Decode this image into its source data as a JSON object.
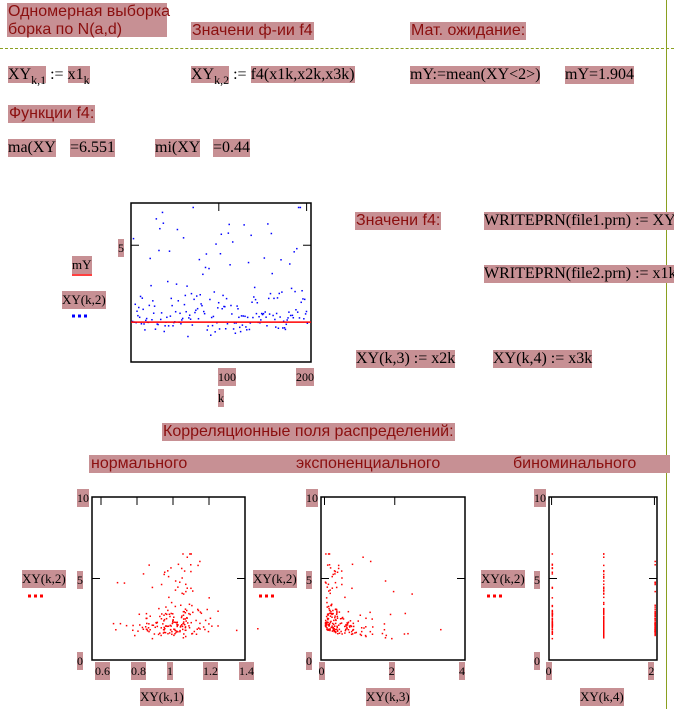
{
  "header": {
    "title_line1": "Одномерная выборка",
    "title_line2": "борка по N(a,d)",
    "func_values_heading": "Значени ф-ии f4",
    "expectation_heading": "Мат. ожидание:"
  },
  "formulas": {
    "xy1_lhs": "XY",
    "xy1_sub": "k,1",
    "xy1_rhs": "x1",
    "xy1_rhs_sub": "k",
    "xy2_lhs": "XY",
    "xy2_sub": "k,2",
    "xy2_rhs": "f4(x1k,x2k,x3k)",
    "mean_def": "mY:=mean(XY<2>)",
    "mean_result": "mY=1.904",
    "functions_heading": "Функции f4:",
    "max_expr": "ma(XY",
    "max_value": "=6.551",
    "min_expr": "mi(XY",
    "min_value": "=0.44",
    "f4_values_label": "Значени f4:",
    "write1": "WRITEPRN(file1.prn) := XY",
    "write2": "WRITEPRN(file2.prn) := x1k",
    "xy3": "XY(k,3) := x2k",
    "xy4": "XY(k,4) := x3k"
  },
  "section": {
    "corr_heading": "Корреляционные поля распределений:",
    "labels": [
      "нормального",
      "экспоненциального",
      "биноминального"
    ]
  },
  "colors": {
    "highlight": "#c79094",
    "heading_text": "#8b0f0f",
    "plot_blue": "#0000ff",
    "plot_red": "#ff0000",
    "divider": "#8aa020"
  },
  "chart_data": [
    {
      "type": "scatter",
      "xlabel": "k",
      "ylabel": "XY(k,2)",
      "legend": [
        "mY",
        "XY(k,2)"
      ],
      "xticks": [
        "100",
        "200"
      ],
      "yticks": [
        "5"
      ],
      "xlim": [
        0,
        205
      ],
      "ylim": [
        0.3,
        6.7
      ],
      "mean_line": 1.904,
      "n_points": 200
    },
    {
      "type": "scatter",
      "xlabel": "XY(k,1)",
      "ylabel": "XY(k,2)",
      "xticks": [
        "0.6",
        "0.8",
        "1",
        "1.2",
        "1.4"
      ],
      "yticks": [
        "0",
        "5",
        "10"
      ],
      "xlim": [
        0.55,
        1.4
      ],
      "ylim": [
        0,
        10
      ],
      "distribution": "normal"
    },
    {
      "type": "scatter",
      "xlabel": "XY(k,3)",
      "ylabel": "XY(k,2)",
      "xticks": [
        "0",
        "2",
        "4"
      ],
      "yticks": [
        "0",
        "5",
        "10"
      ],
      "xlim": [
        -0.1,
        4
      ],
      "ylim": [
        0,
        10
      ],
      "distribution": "exponential"
    },
    {
      "type": "scatter",
      "xlabel": "XY(k,4)",
      "ylabel": "XY(k,2)",
      "xticks": [
        "0",
        "2"
      ],
      "yticks": [
        "0",
        "5",
        "10"
      ],
      "xlim": [
        -0.05,
        2.05
      ],
      "ylim": [
        0,
        10
      ],
      "distribution": "binomial"
    }
  ]
}
